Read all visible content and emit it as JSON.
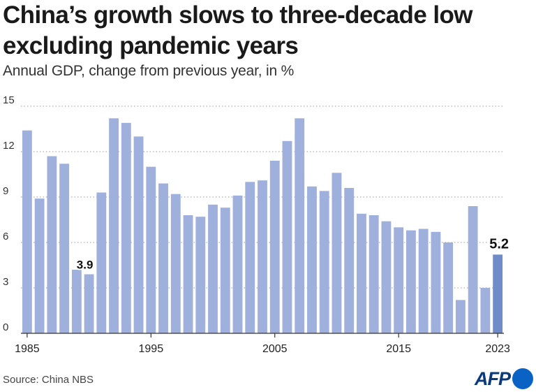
{
  "header": {
    "title": "China’s growth slows to three-decade low excluding pandemic years",
    "subtitle": "Annual GDP, change from previous year, in %"
  },
  "footer": {
    "source": "Source: China NBS",
    "logo_text": "AFP"
  },
  "colors": {
    "bar": "#9fb0dc",
    "bar_highlight": "#6f8cc8",
    "grid": "#999999"
  },
  "chart_data": {
    "type": "bar",
    "title": "China’s growth slows to three-decade low excluding pandemic years",
    "subtitle": "Annual GDP, change from previous year, in %",
    "xlabel": "",
    "ylabel": "",
    "ylim": [
      0,
      15
    ],
    "yticks": [
      0,
      3,
      6,
      9,
      12,
      15
    ],
    "xtick_labels": [
      "1985",
      "1995",
      "2005",
      "2015",
      "2023"
    ],
    "grid": true,
    "categories": [
      1985,
      1986,
      1987,
      1988,
      1989,
      1990,
      1991,
      1992,
      1993,
      1994,
      1995,
      1996,
      1997,
      1998,
      1999,
      2000,
      2001,
      2002,
      2003,
      2004,
      2005,
      2006,
      2007,
      2008,
      2009,
      2010,
      2011,
      2012,
      2013,
      2014,
      2015,
      2016,
      2017,
      2018,
      2019,
      2020,
      2021,
      2022,
      2023
    ],
    "values": [
      13.4,
      8.9,
      11.7,
      11.2,
      4.2,
      3.9,
      9.3,
      14.2,
      13.9,
      13.0,
      11.0,
      9.9,
      9.2,
      7.8,
      7.7,
      8.5,
      8.3,
      9.1,
      10.0,
      10.1,
      11.4,
      12.7,
      14.2,
      9.7,
      9.4,
      10.6,
      9.6,
      7.9,
      7.8,
      7.4,
      7.0,
      6.8,
      6.9,
      6.7,
      6.0,
      2.2,
      8.4,
      3.0,
      5.2
    ],
    "annotations": [
      {
        "x": 1990,
        "text": "3.9"
      },
      {
        "x": 2023,
        "text": "5.2"
      }
    ],
    "highlight": 2023
  }
}
